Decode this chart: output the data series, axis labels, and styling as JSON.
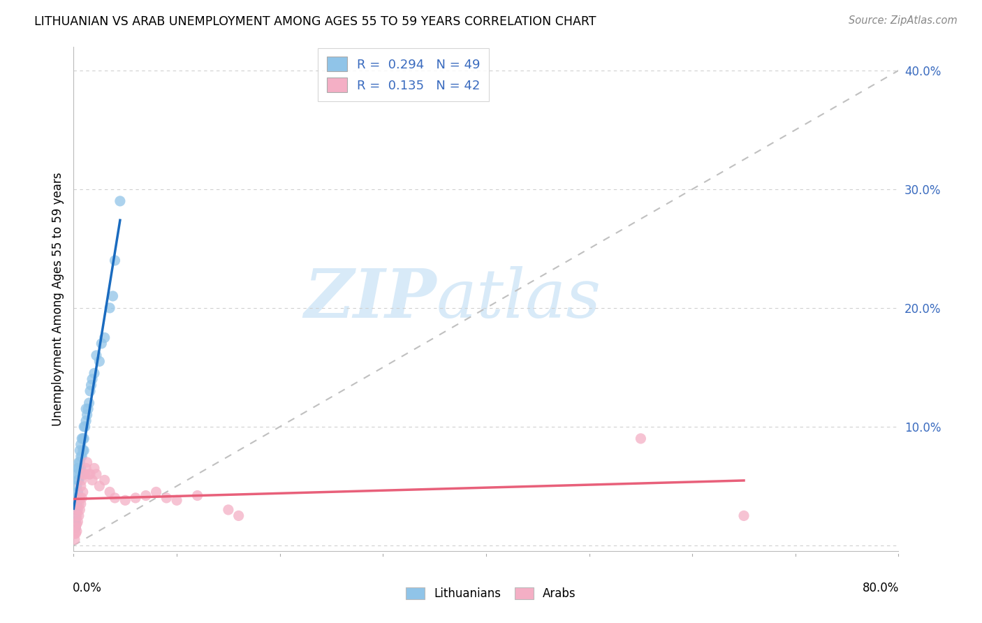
{
  "title": "LITHUANIAN VS ARAB UNEMPLOYMENT AMONG AGES 55 TO 59 YEARS CORRELATION CHART",
  "source": "Source: ZipAtlas.com",
  "ylabel": "Unemployment Among Ages 55 to 59 years",
  "xlim": [
    0.0,
    0.8
  ],
  "ylim": [
    -0.005,
    0.42
  ],
  "ytick_values": [
    0.0,
    0.1,
    0.2,
    0.3,
    0.4
  ],
  "legend_r1": "R = 0.294",
  "legend_n1": "N = 49",
  "legend_r2": "R = 0.135",
  "legend_n2": "N = 42",
  "legend_label1": "Lithuanians",
  "legend_label2": "Arabs",
  "blue_color": "#90c4e8",
  "pink_color": "#f4afc5",
  "blue_line_color": "#1a6bbf",
  "pink_line_color": "#e8607a",
  "diag_color": "#c0c0c0",
  "watermark_color": "#d8eaf8",
  "lith_x": [
    0.001,
    0.001,
    0.001,
    0.002,
    0.002,
    0.002,
    0.002,
    0.003,
    0.003,
    0.003,
    0.003,
    0.004,
    0.004,
    0.004,
    0.004,
    0.005,
    0.005,
    0.005,
    0.006,
    0.006,
    0.006,
    0.007,
    0.007,
    0.007,
    0.008,
    0.008,
    0.009,
    0.009,
    0.01,
    0.01,
    0.01,
    0.011,
    0.012,
    0.012,
    0.013,
    0.014,
    0.015,
    0.016,
    0.017,
    0.018,
    0.02,
    0.022,
    0.025,
    0.027,
    0.03,
    0.035,
    0.038,
    0.04,
    0.045
  ],
  "lith_y": [
    0.015,
    0.02,
    0.03,
    0.015,
    0.02,
    0.025,
    0.03,
    0.03,
    0.035,
    0.04,
    0.05,
    0.045,
    0.055,
    0.06,
    0.065,
    0.055,
    0.065,
    0.07,
    0.06,
    0.07,
    0.08,
    0.065,
    0.075,
    0.085,
    0.075,
    0.09,
    0.08,
    0.09,
    0.08,
    0.09,
    0.1,
    0.1,
    0.105,
    0.115,
    0.11,
    0.115,
    0.12,
    0.13,
    0.135,
    0.14,
    0.145,
    0.16,
    0.155,
    0.17,
    0.175,
    0.2,
    0.21,
    0.24,
    0.29
  ],
  "arab_x": [
    0.001,
    0.001,
    0.002,
    0.002,
    0.003,
    0.003,
    0.003,
    0.004,
    0.004,
    0.005,
    0.005,
    0.006,
    0.006,
    0.007,
    0.007,
    0.008,
    0.008,
    0.009,
    0.01,
    0.011,
    0.012,
    0.013,
    0.015,
    0.016,
    0.018,
    0.02,
    0.022,
    0.025,
    0.03,
    0.035,
    0.04,
    0.05,
    0.06,
    0.07,
    0.08,
    0.09,
    0.1,
    0.12,
    0.15,
    0.16,
    0.55,
    0.65
  ],
  "arab_y": [
    0.005,
    0.01,
    0.01,
    0.015,
    0.012,
    0.018,
    0.025,
    0.02,
    0.03,
    0.025,
    0.035,
    0.03,
    0.04,
    0.035,
    0.05,
    0.04,
    0.055,
    0.045,
    0.06,
    0.06,
    0.065,
    0.07,
    0.06,
    0.06,
    0.055,
    0.065,
    0.06,
    0.05,
    0.055,
    0.045,
    0.04,
    0.038,
    0.04,
    0.042,
    0.045,
    0.04,
    0.038,
    0.042,
    0.03,
    0.025,
    0.09,
    0.025
  ]
}
